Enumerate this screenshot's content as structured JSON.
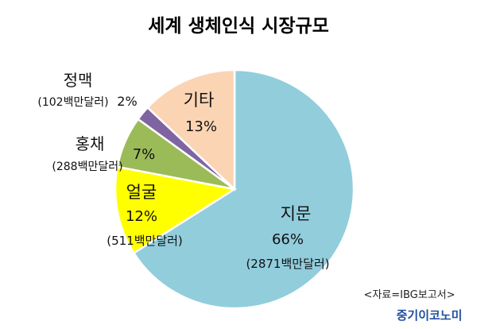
{
  "chart_data": {
    "type": "pie",
    "title": "세계 생체인식 시장규모",
    "slices": [
      {
        "name": "지문",
        "percent": 66,
        "percent_label": "66%",
        "amount_label": "(2871백만달러)",
        "color": "#92cddc"
      },
      {
        "name": "얼굴",
        "percent": 12,
        "percent_label": "12%",
        "amount_label": "(511백만달러)",
        "color": "#ffff00"
      },
      {
        "name": "홍채",
        "percent": 7,
        "percent_label": "7%",
        "amount_label": "(288백만달러)",
        "color": "#9bbb59"
      },
      {
        "name": "정맥",
        "percent": 2,
        "percent_label": "2%",
        "amount_label": "(102백만달러)",
        "color": "#8064a2"
      },
      {
        "name": "기타",
        "percent": 13,
        "percent_label": "13%",
        "amount_label": "",
        "color": "#fbd4b4"
      }
    ]
  },
  "source": "<자료=IBG보고서>",
  "brand": "중기이코노미"
}
